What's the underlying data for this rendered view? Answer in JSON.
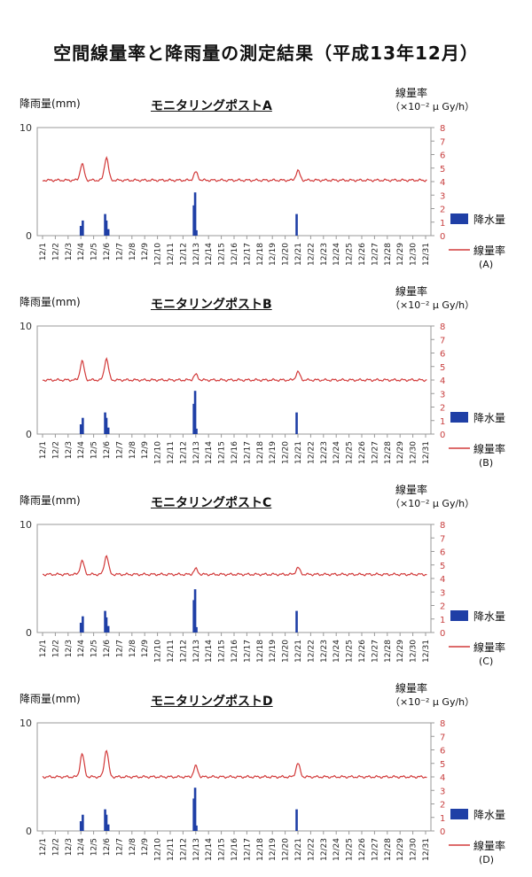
{
  "page": {
    "title": "空間線量率と降雨量の測定結果（平成13年12月）"
  },
  "chart_data": [
    {
      "type": "bar+line",
      "title": "モニタリングポストA",
      "left_axis_title": "降雨量(mm)",
      "right_axis_title_line1": "線量率",
      "right_axis_title_line2": "（×10⁻² μ Gy/h）",
      "left_ylim": [
        0,
        10
      ],
      "left_ticks": [
        "0",
        "10"
      ],
      "right_ylim": [
        0,
        8
      ],
      "right_ticks": [
        "0",
        "1",
        "2",
        "3",
        "4",
        "5",
        "6",
        "7",
        "8"
      ],
      "categories": [
        "12/1",
        "12/2",
        "12/3",
        "12/4",
        "12/5",
        "12/6",
        "12/7",
        "12/8",
        "12/9",
        "12/10",
        "12/11",
        "12/12",
        "12/13",
        "12/14",
        "12/15",
        "12/16",
        "12/17",
        "12/18",
        "12/19",
        "12/20",
        "12/21",
        "12/22",
        "12/23",
        "12/24",
        "12/25",
        "12/26",
        "12/27",
        "12/28",
        "12/29",
        "12/30",
        "12/31"
      ],
      "rain_bars": [
        {
          "x": 4.0,
          "value": 0.9
        },
        {
          "x": 4.15,
          "value": 1.4
        },
        {
          "x": 5.9,
          "value": 2.0
        },
        {
          "x": 6.0,
          "value": 1.4
        },
        {
          "x": 6.15,
          "value": 0.6
        },
        {
          "x": 12.85,
          "value": 2.8
        },
        {
          "x": 12.95,
          "value": 4.0
        },
        {
          "x": 13.05,
          "value": 0.5
        },
        {
          "x": 20.9,
          "value": 2.0
        }
      ],
      "dose_rate_baseline": 4.1,
      "dose_rate_peaks": [
        {
          "x": 4.1,
          "value": 5.3
        },
        {
          "x": 6.0,
          "value": 5.8
        },
        {
          "x": 13.0,
          "value": 4.7
        },
        {
          "x": 21.0,
          "value": 4.8
        }
      ],
      "series": [
        {
          "name": "降水量",
          "color": "#1f3fa6"
        },
        {
          "name": "線量率",
          "sub": "(A)",
          "color": "#d23a3a"
        }
      ]
    },
    {
      "type": "bar+line",
      "title": "モニタリングポストB",
      "left_axis_title": "降雨量(mm)",
      "right_axis_title_line1": "線量率",
      "right_axis_title_line2": "（×10⁻² μ Gy/h）",
      "left_ylim": [
        0,
        10
      ],
      "left_ticks": [
        "0",
        "10"
      ],
      "right_ylim": [
        0,
        8
      ],
      "right_ticks": [
        "0",
        "1",
        "2",
        "3",
        "4",
        "5",
        "6",
        "7",
        "8"
      ],
      "categories": [
        "12/1",
        "12/2",
        "12/3",
        "12/4",
        "12/5",
        "12/6",
        "12/7",
        "12/8",
        "12/9",
        "12/10",
        "12/11",
        "12/12",
        "12/13",
        "12/14",
        "12/15",
        "12/16",
        "12/17",
        "12/18",
        "12/19",
        "12/20",
        "12/21",
        "12/22",
        "12/23",
        "12/24",
        "12/25",
        "12/26",
        "12/27",
        "12/28",
        "12/29",
        "12/30",
        "12/31"
      ],
      "rain_bars": [
        {
          "x": 4.0,
          "value": 0.9
        },
        {
          "x": 4.15,
          "value": 1.5
        },
        {
          "x": 5.9,
          "value": 2.0
        },
        {
          "x": 6.0,
          "value": 1.5
        },
        {
          "x": 6.15,
          "value": 0.6
        },
        {
          "x": 12.85,
          "value": 2.8
        },
        {
          "x": 12.95,
          "value": 4.0
        },
        {
          "x": 13.05,
          "value": 0.5
        },
        {
          "x": 20.9,
          "value": 2.0
        }
      ],
      "dose_rate_baseline": 4.0,
      "dose_rate_peaks": [
        {
          "x": 4.1,
          "value": 5.4
        },
        {
          "x": 6.0,
          "value": 5.6
        },
        {
          "x": 13.0,
          "value": 4.4
        },
        {
          "x": 21.0,
          "value": 4.6
        }
      ],
      "series": [
        {
          "name": "降水量",
          "color": "#1f3fa6"
        },
        {
          "name": "線量率",
          "sub": "(B)",
          "color": "#d23a3a"
        }
      ]
    },
    {
      "type": "bar+line",
      "title": "モニタリングポストC",
      "left_axis_title": "降雨量(mm)",
      "right_axis_title_line1": "線量率",
      "right_axis_title_line2": "（×10⁻² μ Gy/h）",
      "left_ylim": [
        0,
        10
      ],
      "left_ticks": [
        "0",
        "10"
      ],
      "right_ylim": [
        0,
        8
      ],
      "right_ticks": [
        "0",
        "1",
        "2",
        "3",
        "4",
        "5",
        "6",
        "7",
        "8"
      ],
      "categories": [
        "12/1",
        "12/2",
        "12/3",
        "12/4",
        "12/5",
        "12/6",
        "12/7",
        "12/8",
        "12/9",
        "12/10",
        "12/11",
        "12/12",
        "12/13",
        "12/14",
        "12/15",
        "12/16",
        "12/17",
        "12/18",
        "12/19",
        "12/20",
        "12/21",
        "12/22",
        "12/23",
        "12/24",
        "12/25",
        "12/26",
        "12/27",
        "12/28",
        "12/29",
        "12/30",
        "12/31"
      ],
      "rain_bars": [
        {
          "x": 4.0,
          "value": 0.9
        },
        {
          "x": 4.15,
          "value": 1.5
        },
        {
          "x": 5.9,
          "value": 2.0
        },
        {
          "x": 6.0,
          "value": 1.4
        },
        {
          "x": 6.15,
          "value": 0.6
        },
        {
          "x": 12.85,
          "value": 3.0
        },
        {
          "x": 12.95,
          "value": 4.0
        },
        {
          "x": 13.05,
          "value": 0.5
        },
        {
          "x": 20.9,
          "value": 2.0
        }
      ],
      "dose_rate_baseline": 4.3,
      "dose_rate_peaks": [
        {
          "x": 4.1,
          "value": 5.3
        },
        {
          "x": 6.0,
          "value": 5.7
        },
        {
          "x": 13.0,
          "value": 4.7
        },
        {
          "x": 21.0,
          "value": 4.8
        }
      ],
      "series": [
        {
          "name": "降水量",
          "color": "#1f3fa6"
        },
        {
          "name": "線量率",
          "sub": "(C)",
          "color": "#d23a3a"
        }
      ]
    },
    {
      "type": "bar+line",
      "title": "モニタリングポストD",
      "left_axis_title": "降雨量(mm)",
      "right_axis_title_line1": "線量率",
      "right_axis_title_line2": "（×10⁻² μ Gy/h）",
      "left_ylim": [
        0,
        10
      ],
      "left_ticks": [
        "0",
        "10"
      ],
      "right_ylim": [
        0,
        8
      ],
      "right_ticks": [
        "0",
        "1",
        "2",
        "3",
        "4",
        "5",
        "6",
        "7",
        "8"
      ],
      "categories": [
        "12/1",
        "12/2",
        "12/3",
        "12/4",
        "12/5",
        "12/6",
        "12/7",
        "12/8",
        "12/9",
        "12/10",
        "12/11",
        "12/12",
        "12/13",
        "12/14",
        "12/15",
        "12/16",
        "12/17",
        "12/18",
        "12/19",
        "12/20",
        "12/21",
        "12/22",
        "12/23",
        "12/24",
        "12/25",
        "12/26",
        "12/27",
        "12/28",
        "12/29",
        "12/30",
        "12/31"
      ],
      "rain_bars": [
        {
          "x": 4.0,
          "value": 0.9
        },
        {
          "x": 4.15,
          "value": 1.5
        },
        {
          "x": 5.9,
          "value": 2.0
        },
        {
          "x": 6.0,
          "value": 1.5
        },
        {
          "x": 6.15,
          "value": 0.6
        },
        {
          "x": 12.85,
          "value": 3.0
        },
        {
          "x": 12.95,
          "value": 4.0
        },
        {
          "x": 13.05,
          "value": 0.5
        },
        {
          "x": 20.9,
          "value": 2.0
        }
      ],
      "dose_rate_baseline": 4.0,
      "dose_rate_peaks": [
        {
          "x": 4.1,
          "value": 5.7
        },
        {
          "x": 6.0,
          "value": 6.0
        },
        {
          "x": 13.0,
          "value": 4.8
        },
        {
          "x": 21.0,
          "value": 5.0
        }
      ],
      "series": [
        {
          "name": "降水量",
          "color": "#1f3fa6"
        },
        {
          "name": "線量率",
          "sub": "(D)",
          "color": "#d23a3a"
        }
      ]
    }
  ]
}
